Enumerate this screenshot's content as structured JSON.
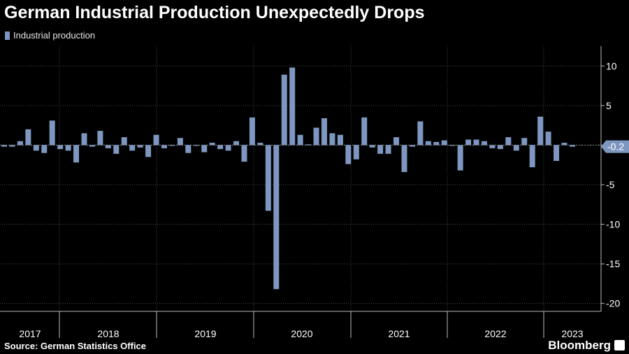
{
  "title": "German Industrial Production Unexpectedly Drops",
  "source": "Source: German Statistics Office",
  "brand": "Bloomberg",
  "colors": {
    "bar": "#7e97c0",
    "background": "#000000",
    "grid": "#4a4a4a",
    "text": "#ffffff"
  },
  "chart_data": {
    "type": "bar",
    "legend": [
      "Industrial production"
    ],
    "legend_position": "top-left",
    "x_labels": [
      "2017",
      "2018",
      "2019",
      "2020",
      "2021",
      "2022",
      "2023"
    ],
    "yticks": [
      10,
      5,
      0,
      -5,
      -10,
      -15,
      -20
    ],
    "ylim": [
      -21,
      12.5
    ],
    "last_value_label": "-0.2",
    "grid": true,
    "series": [
      {
        "name": "Industrial production",
        "values": [
          -0.2,
          -0.2,
          0.5,
          2.0,
          -0.7,
          -1.0,
          3.1,
          -0.5,
          -0.7,
          -2.2,
          1.5,
          -0.2,
          1.8,
          -0.4,
          -1.1,
          1.0,
          -0.7,
          -0.3,
          -1.5,
          1.3,
          -0.4,
          -0.1,
          0.9,
          -1.0,
          -0.1,
          -0.9,
          0.3,
          -0.5,
          -0.7,
          0.5,
          -2.1,
          3.5,
          0.3,
          -8.3,
          -18.2,
          8.9,
          9.8,
          1.3,
          0.1,
          2.2,
          3.4,
          1.5,
          1.3,
          -2.4,
          -1.8,
          3.5,
          -0.3,
          -1.1,
          -1.1,
          1.0,
          -3.4,
          -0.2,
          3.0,
          0.5,
          0.4,
          0.6,
          -0.1,
          -3.2,
          0.7,
          0.7,
          0.5,
          -0.4,
          -0.5,
          1.0,
          -0.7,
          0.9,
          -2.8,
          3.6,
          1.7,
          -2.0,
          0.3,
          -0.2
        ]
      }
    ]
  }
}
